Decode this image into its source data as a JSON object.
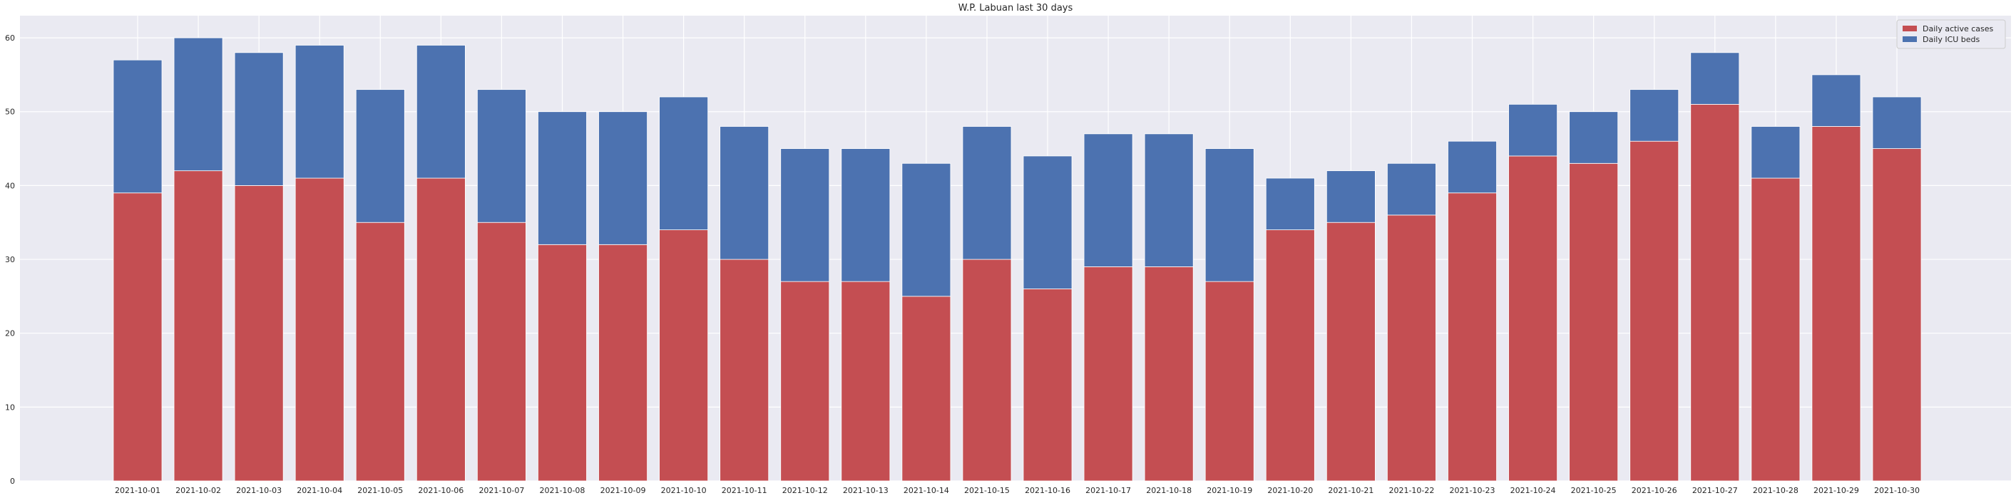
{
  "chart_data": {
    "type": "bar",
    "stacked": true,
    "title": "W.P. Labuan last 30 days",
    "xlabel": "",
    "ylabel": "",
    "ylim": [
      0,
      63
    ],
    "yticks": [
      0,
      10,
      20,
      30,
      40,
      50,
      60
    ],
    "grid": true,
    "legend_position": "top-right",
    "categories": [
      "2021-10-01",
      "2021-10-02",
      "2021-10-03",
      "2021-10-04",
      "2021-10-05",
      "2021-10-06",
      "2021-10-07",
      "2021-10-08",
      "2021-10-09",
      "2021-10-10",
      "2021-10-11",
      "2021-10-12",
      "2021-10-13",
      "2021-10-14",
      "2021-10-15",
      "2021-10-16",
      "2021-10-17",
      "2021-10-18",
      "2021-10-19",
      "2021-10-20",
      "2021-10-21",
      "2021-10-22",
      "2021-10-23",
      "2021-10-24",
      "2021-10-25",
      "2021-10-26",
      "2021-10-27",
      "2021-10-28",
      "2021-10-29",
      "2021-10-30"
    ],
    "series": [
      {
        "name": "Daily active cases",
        "color": "#c44e52",
        "values": [
          39,
          42,
          40,
          41,
          35,
          41,
          35,
          32,
          32,
          34,
          30,
          27,
          27,
          25,
          30,
          26,
          29,
          29,
          27,
          34,
          35,
          36,
          39,
          44,
          43,
          46,
          51,
          41,
          48,
          45
        ]
      },
      {
        "name": "Daily ICU beds",
        "color": "#4c72b0",
        "values": [
          18,
          18,
          18,
          18,
          18,
          18,
          18,
          18,
          18,
          18,
          18,
          18,
          18,
          18,
          18,
          18,
          18,
          18,
          18,
          7,
          7,
          7,
          7,
          7,
          7,
          7,
          7,
          7,
          7,
          7
        ]
      }
    ]
  },
  "colors": {
    "plot_background": "#eaeaf2",
    "grid": "#ffffff",
    "text": "#262626"
  }
}
